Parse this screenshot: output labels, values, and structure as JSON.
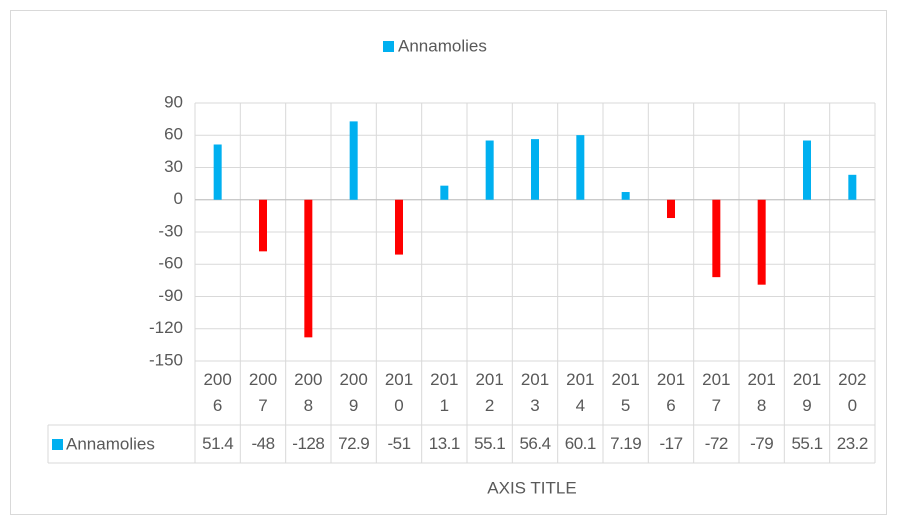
{
  "chart_data": {
    "type": "bar",
    "x_label": "AXIS TITLE",
    "categories": [
      "2006",
      "2007",
      "2008",
      "2009",
      "2010",
      "2011",
      "2012",
      "2013",
      "2014",
      "2015",
      "2016",
      "2017",
      "2018",
      "2019",
      "2020"
    ],
    "series": [
      {
        "name": "Annamolies",
        "color": "#00b0f0",
        "negative_color": "#ff0000",
        "values": [
          51.4,
          -48,
          -128,
          72.9,
          -51,
          13.1,
          55.1,
          56.4,
          60.1,
          7.19,
          -17,
          -72,
          -79,
          55.1,
          23.2
        ]
      }
    ],
    "ylim": [
      -150,
      90
    ],
    "yticks": [
      -150,
      -120,
      -90,
      -60,
      -30,
      0,
      30,
      60,
      90
    ],
    "grid": true,
    "legend": "top",
    "data_table": true
  }
}
